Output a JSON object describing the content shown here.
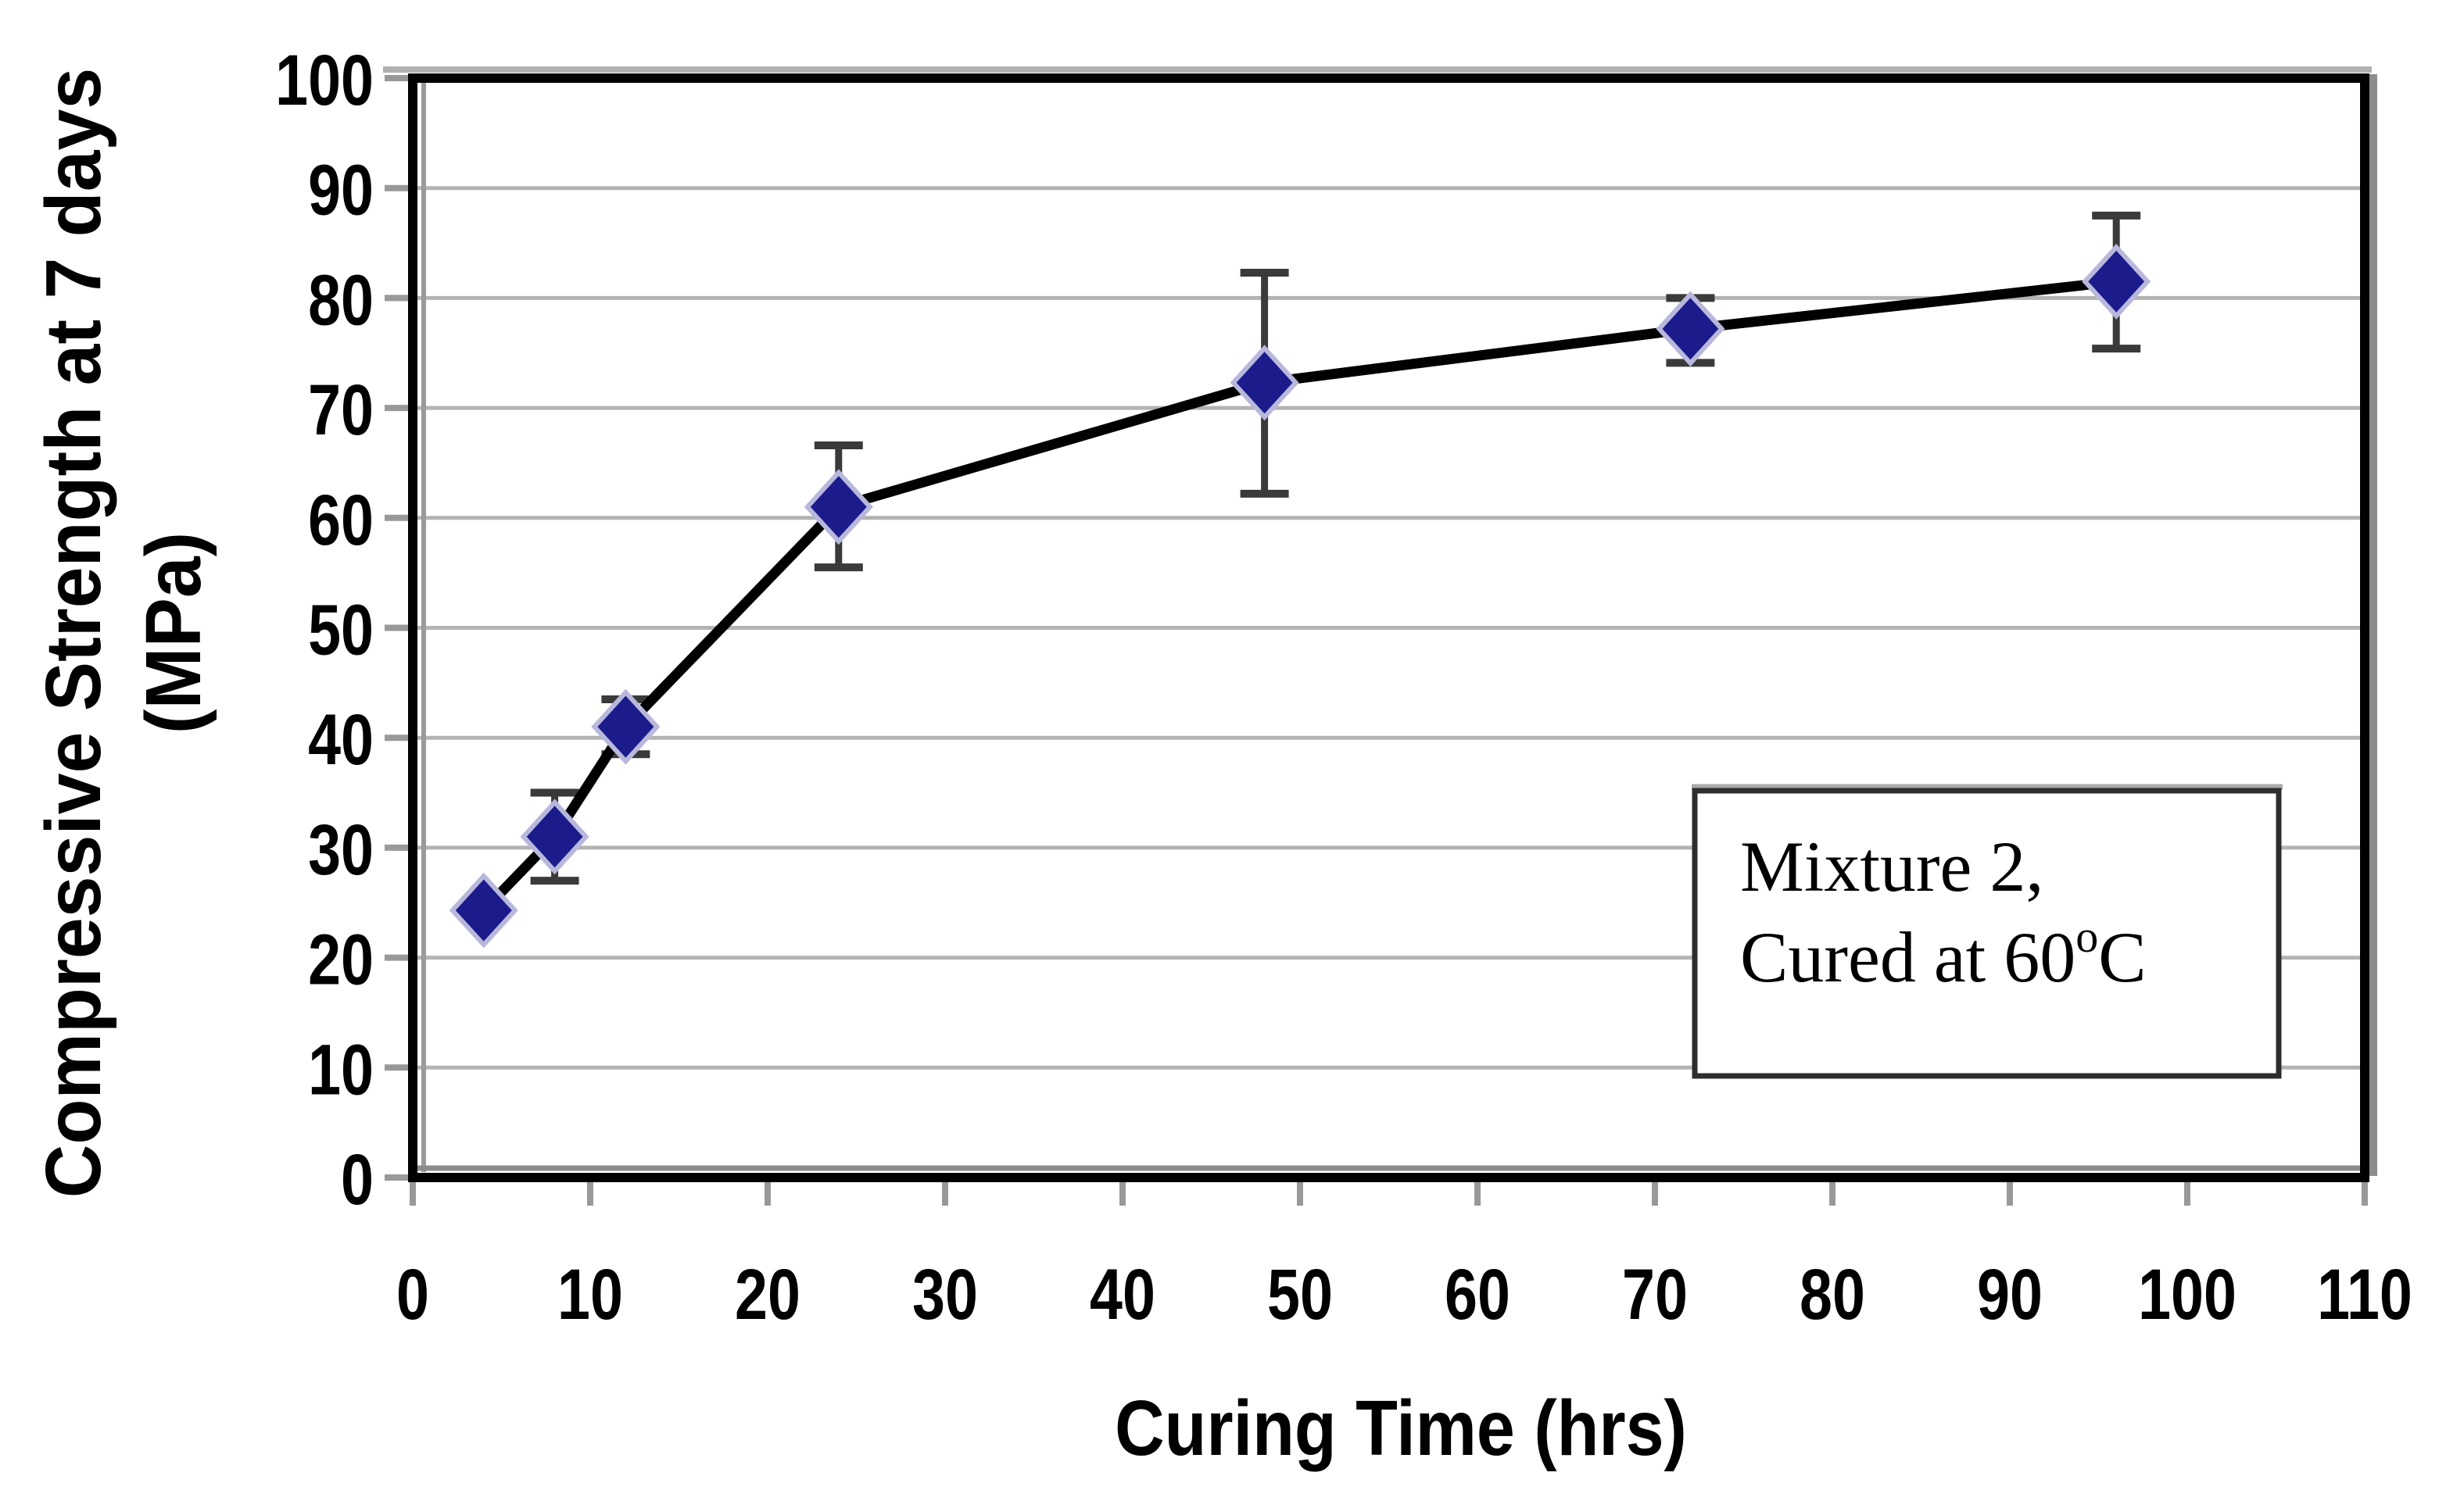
{
  "chart_data": {
    "type": "line",
    "title": "",
    "xlabel": "Curing Time (hrs)",
    "ylabel_line1": "Compressive Strength at 7 days",
    "ylabel_line2": "(MPa)",
    "series": [
      {
        "name": "Mixture 2 cured at 60C",
        "x": [
          4,
          8,
          12,
          24,
          48,
          72,
          96
        ],
        "y": [
          24.3,
          31,
          41,
          61,
          72.3,
          77.2,
          81.5
        ],
        "y_err_low": [
          24.3,
          27,
          38.5,
          55.5,
          62.2,
          74.1,
          75.4
        ],
        "y_err_high": [
          24.3,
          35,
          43.5,
          66.6,
          82.3,
          80.0,
          87.5
        ]
      }
    ],
    "xlim": [
      0,
      110
    ],
    "ylim": [
      0,
      100
    ],
    "x_ticks": [
      0,
      10,
      20,
      30,
      40,
      50,
      60,
      70,
      80,
      90,
      100,
      110
    ],
    "y_ticks": [
      0,
      10,
      20,
      30,
      40,
      50,
      60,
      70,
      80,
      90,
      100
    ],
    "grid": "horizontal",
    "legend_position": "none",
    "annotation": {
      "line1": "Mixture 2,",
      "line2_pre": "Cured at 60",
      "line2_sup": "o",
      "line2_post": "C"
    },
    "colors": {
      "marker": "#1b1b8c",
      "marker_halo": "#b8b8dc",
      "line": "#000000",
      "error_bar": "#3a3a3a",
      "grid": "#b3b3b3",
      "frame": "#000000",
      "shadow": "#8c8c8c",
      "tick": "#999999",
      "background": "#ffffff"
    }
  }
}
